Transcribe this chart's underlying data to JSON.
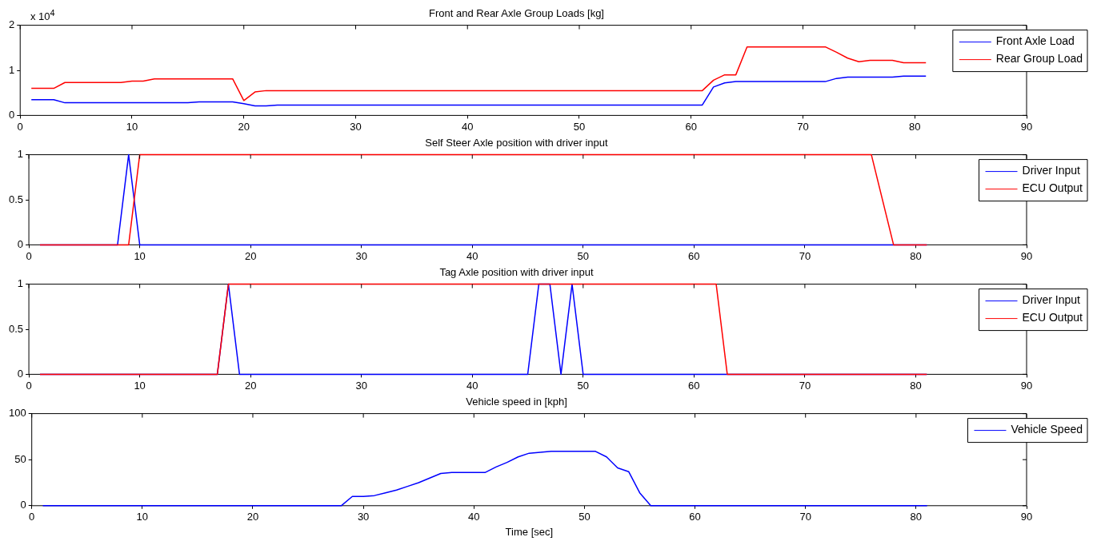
{
  "chart_data": [
    {
      "type": "line",
      "title": "Front and Rear Axle Group Loads [kg]",
      "xlim": [
        0,
        90
      ],
      "xticks": [
        0,
        10,
        20,
        30,
        40,
        50,
        60,
        70,
        80,
        90
      ],
      "ylim": [
        0,
        2
      ],
      "yticks": [
        0,
        1,
        2
      ],
      "annotations": [
        "x 10$^{4}$"
      ],
      "legend": "top right",
      "grid": false,
      "marker": "none",
      "line_style": "solid",
      "series": [
        {
          "name": "Front Axle Load",
          "color": "#0000ff",
          "x": [
            1,
            3,
            4,
            15,
            16,
            19,
            20,
            21,
            22,
            23,
            61,
            62,
            63,
            64,
            72,
            73,
            74,
            78,
            79,
            81
          ],
          "values": [
            0.35,
            0.35,
            0.28,
            0.28,
            0.3,
            0.3,
            0.26,
            0.21,
            0.21,
            0.23,
            0.23,
            0.63,
            0.72,
            0.75,
            0.75,
            0.82,
            0.85,
            0.85,
            0.87,
            0.87
          ]
        },
        {
          "name": "Rear Group Load",
          "color": "#ff0000",
          "x": [
            1,
            3,
            4,
            9,
            10,
            11,
            12,
            19,
            20,
            21,
            22,
            61,
            62,
            63,
            64,
            65,
            72,
            73,
            74,
            75,
            76,
            78,
            79,
            81
          ],
          "values": [
            0.6,
            0.6,
            0.73,
            0.73,
            0.76,
            0.76,
            0.81,
            0.81,
            0.33,
            0.52,
            0.55,
            0.55,
            0.78,
            0.9,
            0.9,
            1.52,
            1.52,
            1.4,
            1.27,
            1.19,
            1.22,
            1.22,
            1.17,
            1.17
          ]
        }
      ]
    },
    {
      "type": "line",
      "title": "Self Steer Axle position with driver input",
      "xlim": [
        0,
        90
      ],
      "xticks": [
        0,
        10,
        20,
        30,
        40,
        50,
        60,
        70,
        80,
        90
      ],
      "ylim": [
        0,
        1
      ],
      "yticks": [
        0,
        0.5,
        1
      ],
      "legend": "top right",
      "grid": false,
      "marker": "none",
      "line_style": "solid",
      "series": [
        {
          "name": "Driver Input",
          "color": "#0000ff",
          "x": [
            1,
            8,
            9,
            10,
            81
          ],
          "values": [
            0,
            0,
            1,
            0,
            0
          ]
        },
        {
          "name": "ECU Output",
          "color": "#ff0000",
          "x": [
            1,
            9,
            10,
            76,
            78,
            81
          ],
          "values": [
            0,
            0,
            1,
            1,
            0,
            0
          ]
        }
      ]
    },
    {
      "type": "line",
      "title": "Tag Axle position with driver input",
      "xlim": [
        0,
        90
      ],
      "xticks": [
        0,
        10,
        20,
        30,
        40,
        50,
        60,
        70,
        80,
        90
      ],
      "ylim": [
        0,
        1
      ],
      "yticks": [
        0,
        0.5,
        1
      ],
      "legend": "top right",
      "grid": false,
      "marker": "none",
      "line_style": "solid",
      "series": [
        {
          "name": "Driver Input",
          "color": "#0000ff",
          "x": [
            1,
            17,
            18,
            19,
            45,
            46,
            47,
            48,
            49,
            50,
            81
          ],
          "values": [
            0,
            0,
            1,
            0,
            0,
            1,
            1,
            0,
            1,
            0,
            0
          ]
        },
        {
          "name": "ECU Output",
          "color": "#ff0000",
          "x": [
            1,
            17,
            18,
            62,
            63,
            81
          ],
          "values": [
            0,
            0,
            1,
            1,
            0,
            0
          ]
        }
      ]
    },
    {
      "type": "line",
      "title": "Vehicle speed in [kph]",
      "xlabel": "Time [sec]",
      "xlim": [
        0,
        90
      ],
      "xticks": [
        0,
        10,
        20,
        30,
        40,
        50,
        60,
        70,
        80,
        90
      ],
      "ylim": [
        0,
        100
      ],
      "yticks": [
        0,
        50,
        100
      ],
      "legend": "top right",
      "grid": false,
      "marker": "none",
      "line_style": "solid",
      "series": [
        {
          "name": "Vehicle Speed",
          "color": "#0000ff",
          "x": [
            1,
            28,
            29,
            30,
            31,
            32,
            33,
            34,
            35,
            36,
            37,
            38,
            41,
            42,
            43,
            44,
            45,
            46,
            47,
            51,
            52,
            53,
            54,
            55,
            56,
            81
          ],
          "values": [
            0,
            0,
            10,
            10,
            11,
            14,
            17,
            21,
            25,
            30,
            35,
            36,
            36,
            42,
            47,
            53,
            57,
            58,
            59,
            59,
            53,
            41,
            37,
            14,
            0,
            0
          ]
        }
      ]
    }
  ]
}
